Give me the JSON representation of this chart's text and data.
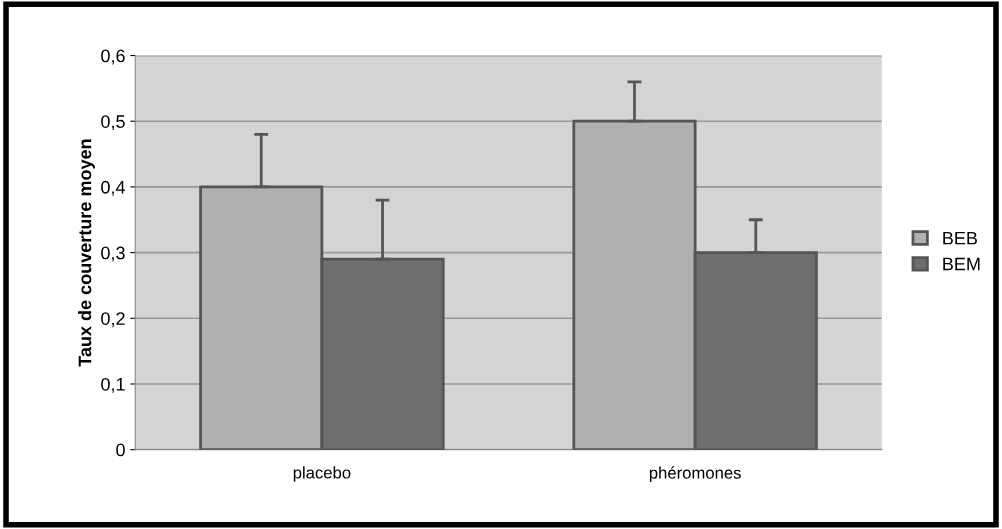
{
  "chart_data": {
    "type": "bar",
    "ylabel": "Taux de couverture moyen",
    "categories": [
      "placebo",
      "phéromones"
    ],
    "series": [
      {
        "name": "BEB",
        "color": "#b0b0b0",
        "values": [
          0.4,
          0.5
        ],
        "errors": [
          [
            0.4,
            0.48
          ],
          [
            0.5,
            0.56
          ]
        ]
      },
      {
        "name": "BEM",
        "color": "#6e6e6e",
        "values": [
          0.29,
          0.3
        ],
        "errors": [
          [
            0.29,
            0.38
          ],
          [
            0.3,
            0.35
          ]
        ]
      }
    ],
    "ylim": [
      0,
      0.6
    ],
    "yticks": [
      {
        "value": 0,
        "label": "0"
      },
      {
        "value": 0.1,
        "label": "0,1"
      },
      {
        "value": 0.2,
        "label": "0,2"
      },
      {
        "value": 0.3,
        "label": "0,3"
      },
      {
        "value": 0.4,
        "label": "0,4"
      },
      {
        "value": 0.5,
        "label": "0,5"
      },
      {
        "value": 0.6,
        "label": "0,6"
      }
    ],
    "grid": "y",
    "legend": "right"
  }
}
